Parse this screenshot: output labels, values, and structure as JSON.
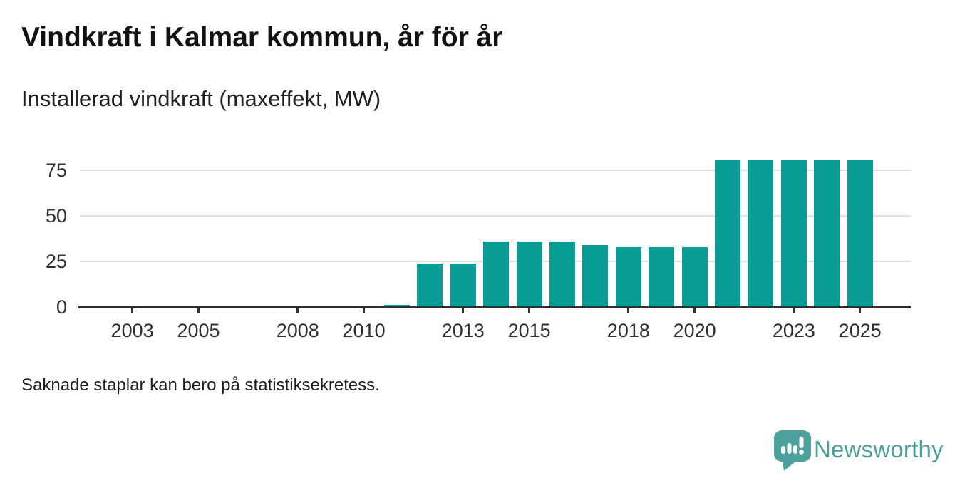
{
  "header": {
    "title": "Vindkraft i Kalmar kommun, år för år",
    "subtitle": "Installerad vindkraft (maxeffekt, MW)"
  },
  "chart_data": {
    "type": "bar",
    "title": "Vindkraft i Kalmar kommun, år för år",
    "subtitle": "Installerad vindkraft (maxeffekt, MW)",
    "ylabel": "Installerad vindkraft (maxeffekt, MW)",
    "xlabel": "",
    "unit": "MW",
    "categories": [
      2001,
      2002,
      2003,
      2004,
      2005,
      2006,
      2007,
      2008,
      2009,
      2010,
      2011,
      2012,
      2013,
      2014,
      2015,
      2016,
      2017,
      2018,
      2019,
      2020,
      2021,
      2022,
      2023,
      2024,
      2025
    ],
    "values": [
      null,
      null,
      null,
      null,
      null,
      null,
      null,
      null,
      null,
      null,
      1,
      24,
      24,
      36,
      36,
      36,
      34,
      33,
      33,
      33,
      81,
      81,
      81,
      81,
      81
    ],
    "x_tick_labels": [
      "2003",
      "2005",
      "2008",
      "2010",
      "2013",
      "2015",
      "2018",
      "2020",
      "2023",
      "2025"
    ],
    "y_ticks": [
      0,
      25,
      50,
      75
    ],
    "ylim": [
      0,
      85
    ],
    "grid": true,
    "legend": "none",
    "bar_color": "#099c95",
    "gridline_color": "#e2e2e2",
    "axis_color": "#2e2e2e",
    "missing_note": "Saknade staplar kan bero på statistiksekretess."
  },
  "footer": {
    "note": "Saknade staplar kan bero på statistiksekretess."
  },
  "branding": {
    "logo_text": "Newsworthy",
    "logo_color": "#4ba09b",
    "logo_icon": "newsworthy-speech-bubble-bar-chart"
  }
}
